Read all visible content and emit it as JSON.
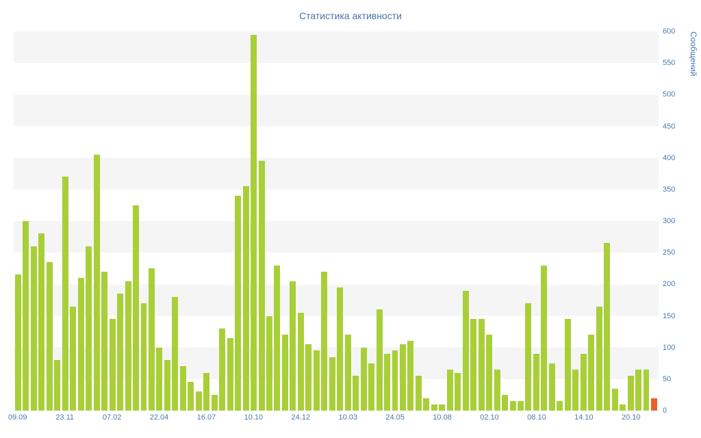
{
  "title": "Статистика активности",
  "y_axis": {
    "label": "Сообщений",
    "ticks": [
      0,
      50,
      100,
      150,
      200,
      250,
      300,
      350,
      400,
      450,
      500,
      550,
      600
    ]
  },
  "colors": {
    "title": "#4573a9",
    "axis_text": "#4a79ad",
    "bar": "#a9cf38",
    "highlight": "#e8622c",
    "stripe": "#f5f5f5",
    "background": "#ffffff"
  },
  "chart_data": {
    "type": "bar",
    "title": "Статистика активности",
    "xlabel": "",
    "ylabel": "Сообщений",
    "ylim": [
      0,
      600
    ],
    "grid": "horizontal-stripes",
    "legend": "none",
    "bar_color": "#a9cf38",
    "highlight_color": "#e8622c",
    "highlight_index": 81,
    "x_tick_labels": [
      "09.09",
      "23.11",
      "07.02",
      "22.04",
      "16.07",
      "10.10",
      "24.12",
      "10.03",
      "24.05",
      "10.08",
      "02.10",
      "08.10",
      "14.10",
      "20.10"
    ],
    "x_tick_positions": [
      0,
      6,
      12,
      18,
      24,
      30,
      36,
      42,
      48,
      54,
      60,
      66,
      72,
      78
    ],
    "values": [
      215,
      300,
      260,
      280,
      235,
      80,
      370,
      165,
      210,
      260,
      405,
      220,
      145,
      185,
      205,
      325,
      170,
      225,
      100,
      80,
      180,
      70,
      45,
      30,
      60,
      25,
      130,
      115,
      340,
      355,
      595,
      395,
      150,
      230,
      120,
      205,
      155,
      105,
      95,
      220,
      85,
      195,
      120,
      55,
      100,
      75,
      160,
      90,
      95,
      105,
      110,
      55,
      20,
      10,
      10,
      65,
      60,
      190,
      145,
      145,
      120,
      65,
      25,
      15,
      15,
      170,
      90,
      230,
      75,
      15,
      145,
      65,
      90,
      120,
      165,
      265,
      35,
      10,
      55,
      65,
      65,
      20
    ]
  }
}
